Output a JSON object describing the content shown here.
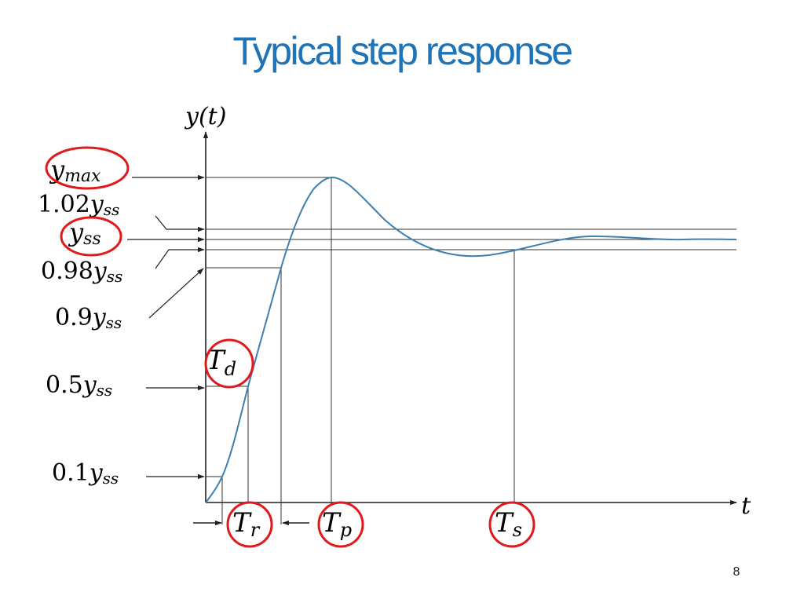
{
  "title": "Typical step response",
  "page_number": "8",
  "diagram": {
    "y_axis_label": "y(t)",
    "x_axis_label": "t",
    "level_labels": {
      "ymax": {
        "base": "y",
        "sub": "max"
      },
      "y102": {
        "coef": "1.02",
        "base": "y",
        "sub": "ss"
      },
      "yss": {
        "base": "y",
        "sub": "ss"
      },
      "y098": {
        "coef": "0.98",
        "base": "y",
        "sub": "ss"
      },
      "y09": {
        "coef": "0.9",
        "base": "y",
        "sub": "ss"
      },
      "y05": {
        "coef": "0.5",
        "base": "y",
        "sub": "ss"
      },
      "y01": {
        "coef": "0.1",
        "base": "y",
        "sub": "ss"
      }
    },
    "time_labels": {
      "Td": {
        "base": "T",
        "sub": "d"
      },
      "Tr": {
        "base": "T",
        "sub": "r"
      },
      "Tp": {
        "base": "T",
        "sub": "p"
      },
      "Ts": {
        "base": "T",
        "sub": "s"
      }
    },
    "colors": {
      "curve": "#3d7fb0",
      "highlight": "#e0191b",
      "lines": "#222222",
      "title": "#1f73b7"
    }
  }
}
